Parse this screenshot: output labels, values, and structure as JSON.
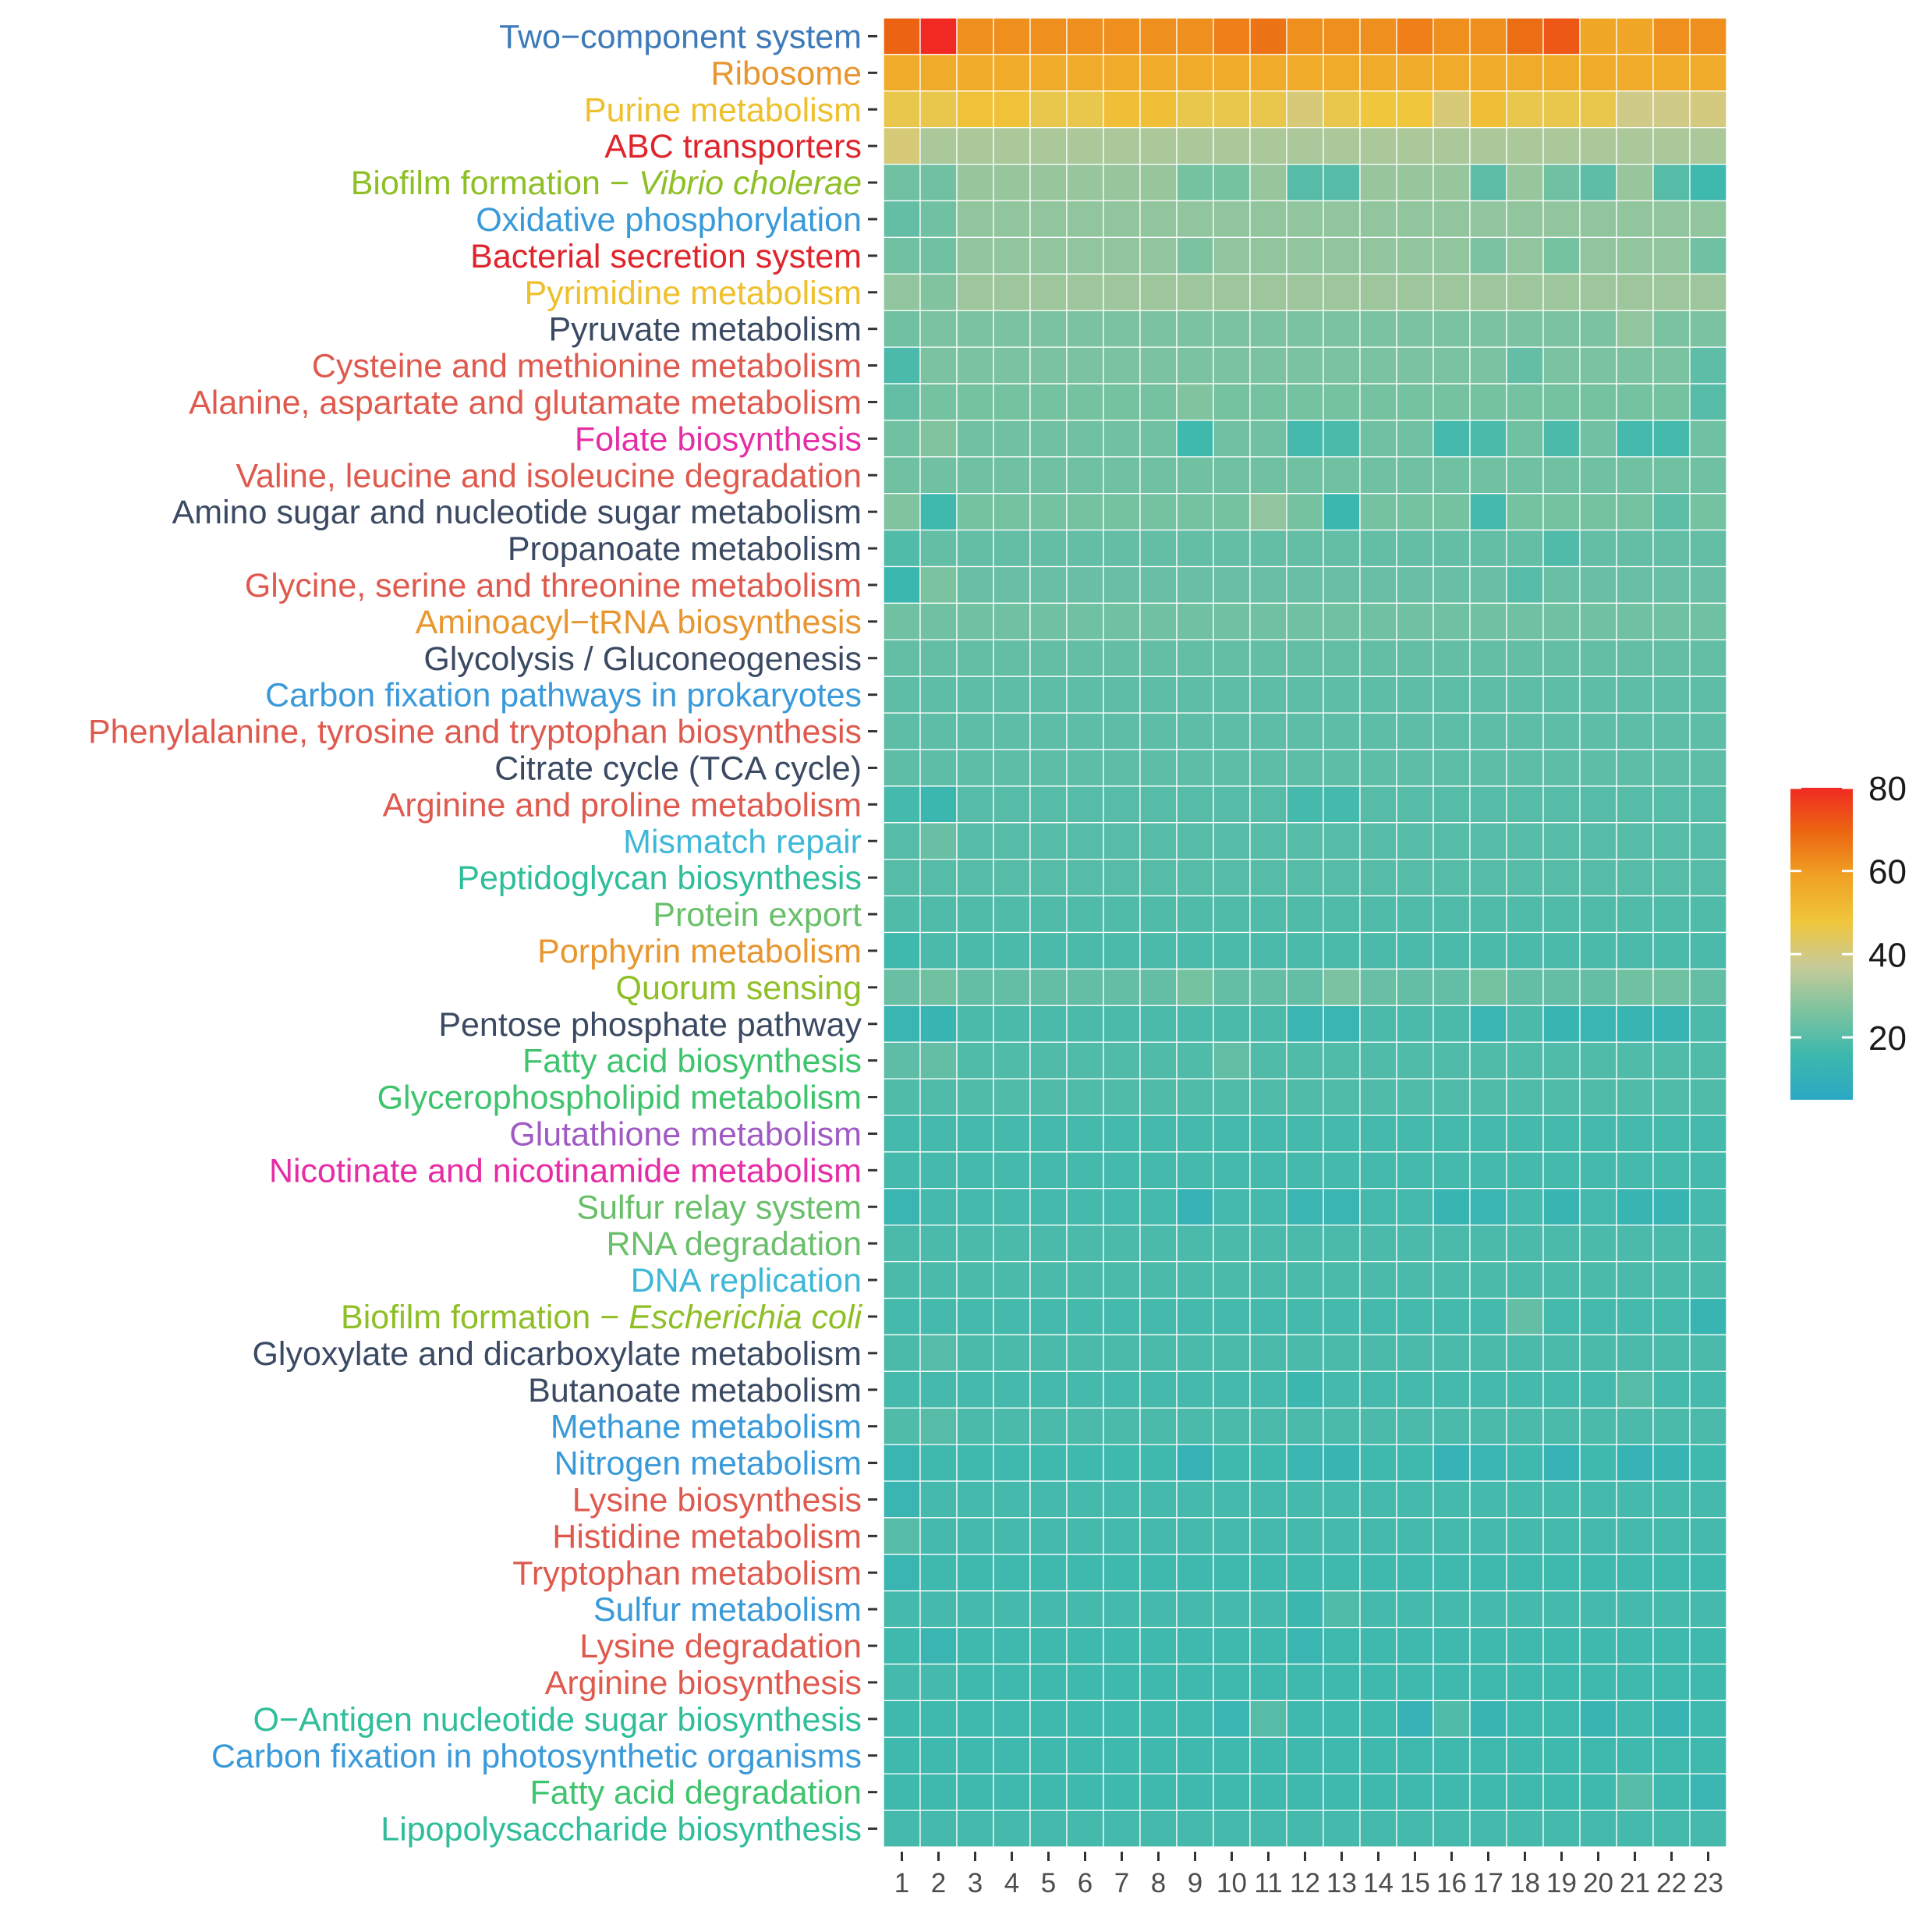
{
  "chart_data": {
    "type": "heatmap",
    "title": "",
    "xlabel": "",
    "ylabel": "",
    "columns": [
      "1",
      "2",
      "3",
      "4",
      "5",
      "6",
      "7",
      "8",
      "9",
      "10",
      "11",
      "12",
      "13",
      "14",
      "15",
      "16",
      "17",
      "18",
      "19",
      "20",
      "21",
      "22",
      "23"
    ],
    "rows": [
      {
        "label": "Two−component system",
        "color": "#3d7ab8",
        "base": 62,
        "devs": {
          "1": 70,
          "2": 80,
          "10": 65,
          "11": 67,
          "15": 65,
          "18": 68,
          "19": 72,
          "20": 57,
          "21": 57
        }
      },
      {
        "label": "Ribosome",
        "color": "#e8962f",
        "base": 56,
        "devs": {}
      },
      {
        "label": "Purine metabolism",
        "color": "#eec02c",
        "base": 46,
        "devs": {
          "3": 49,
          "4": 49,
          "7": 50,
          "8": 50,
          "12": 41,
          "14": 48,
          "15": 48,
          "16": 41,
          "17": 50,
          "21": 39,
          "22": 39,
          "23": 40
        }
      },
      {
        "label": "ABC transporters",
        "color": "#e0242c",
        "base": 33,
        "devs": {
          "1": 41
        }
      },
      {
        "label": "Biofilm formation − ",
        "italic": "Vibrio cholerae",
        "color": "#8fbf26",
        "base": 30,
        "devs": {
          "1": 24,
          "2": 24,
          "9": 25,
          "10": 25,
          "12": 20,
          "13": 20,
          "17": 21,
          "19": 24,
          "20": 21,
          "22": 20,
          "23": 16
        }
      },
      {
        "label": "Oxidative phosphorylation",
        "color": "#3a9ad9",
        "base": 29,
        "devs": {
          "1": 22,
          "2": 24
        }
      },
      {
        "label": "Bacterial secretion system",
        "color": "#e0242c",
        "base": 29,
        "devs": {
          "1": 24,
          "2": 24,
          "9": 26,
          "17": 26,
          "19": 25,
          "23": 24
        }
      },
      {
        "label": "Pyrimidine metabolism",
        "color": "#eec02c",
        "base": 31,
        "devs": {
          "1": 29,
          "2": 27
        }
      },
      {
        "label": "Pyruvate metabolism",
        "color": "#3b4a63",
        "base": 26,
        "devs": {
          "1": 24,
          "21": 29
        }
      },
      {
        "label": "Cysteine and methionine metabolism",
        "color": "#df5a4e",
        "base": 26,
        "devs": {
          "1": 18,
          "18": 22,
          "23": 21
        }
      },
      {
        "label": "Alanine, aspartate and glutamate metabolism",
        "color": "#df5a4e",
        "base": 25,
        "devs": {
          "1": 22,
          "9": 27,
          "23": 20
        }
      },
      {
        "label": "Folate biosynthesis",
        "color": "#e62da6",
        "base": 24,
        "devs": {
          "2": 27,
          "9": 16,
          "12": 17,
          "13": 18,
          "16": 17,
          "17": 18,
          "19": 18,
          "21": 17,
          "22": 17
        }
      },
      {
        "label": "Valine, leucine and isoleucine degradation",
        "color": "#df5a4e",
        "base": 24,
        "devs": {}
      },
      {
        "label": "Amino sugar and nucleotide sugar metabolism",
        "color": "#3b4a63",
        "base": 25,
        "devs": {
          "1": 27,
          "2": 16,
          "11": 29,
          "13": 15,
          "17": 17,
          "22": 21
        }
      },
      {
        "label": "Propanoate metabolism",
        "color": "#3b4a63",
        "base": 22,
        "devs": {
          "1": 19,
          "19": 19
        }
      },
      {
        "label": "Glycine, serine and threonine metabolism",
        "color": "#df5a4e",
        "base": 23,
        "devs": {
          "1": 15,
          "2": 26,
          "18": 20
        }
      },
      {
        "label": "Aminoacyl−tRNA biosynthesis",
        "color": "#e8962f",
        "base": 24,
        "devs": {}
      },
      {
        "label": "Glycolysis / Gluconeogenesis",
        "color": "#3b4a63",
        "base": 22,
        "devs": {}
      },
      {
        "label": "Carbon fixation pathways in prokaryotes",
        "color": "#3a9ad9",
        "base": 21,
        "devs": {}
      },
      {
        "label": "Phenylalanine, tyrosine and tryptophan biosynthesis",
        "color": "#df5a4e",
        "base": 21,
        "devs": {}
      },
      {
        "label": "Citrate cycle (TCA cycle)",
        "color": "#3b4a63",
        "base": 21,
        "devs": {}
      },
      {
        "label": "Arginine and proline metabolism",
        "color": "#df5a4e",
        "base": 20,
        "devs": {
          "1": 17,
          "2": 15,
          "12": 17,
          "13": 17
        }
      },
      {
        "label": "Mismatch repair",
        "color": "#3fb8d8",
        "base": 20,
        "devs": {
          "2": 23
        }
      },
      {
        "label": "Peptidoglycan biosynthesis",
        "color": "#2fbd9a",
        "base": 20,
        "devs": {}
      },
      {
        "label": "Protein export",
        "color": "#6abf6b",
        "base": 19,
        "devs": {}
      },
      {
        "label": "Porphyrin metabolism",
        "color": "#e8962f",
        "base": 18,
        "devs": {
          "1": 16
        }
      },
      {
        "label": "Quorum sensing",
        "color": "#8fbf26",
        "base": 22,
        "devs": {
          "1": 23,
          "2": 24,
          "9": 25,
          "13": 26,
          "14": 23,
          "17": 25,
          "21": 24,
          "22": 24
        }
      },
      {
        "label": "Pentose phosphate pathway",
        "color": "#3b4a63",
        "base": 18,
        "devs": {
          "1": 14,
          "2": 13,
          "12": 14,
          "13": 14,
          "17": 14,
          "19": 13,
          "20": 14,
          "21": 13,
          "22": 13
        }
      },
      {
        "label": "Fatty acid biosynthesis",
        "color": "#3ec46d",
        "base": 19,
        "devs": {
          "1": 21,
          "2": 22,
          "10": 22
        }
      },
      {
        "label": "Glycerophospholipid metabolism",
        "color": "#3ec46d",
        "base": 19,
        "devs": {}
      },
      {
        "label": "Glutathione metabolism",
        "color": "#a05ac4",
        "base": 17,
        "devs": {}
      },
      {
        "label": "Nicotinate and nicotinamide metabolism",
        "color": "#e62da6",
        "base": 17,
        "devs": {}
      },
      {
        "label": "Sulfur relay system",
        "color": "#6abf6b",
        "base": 17,
        "devs": {
          "1": 14,
          "9": 12,
          "12": 14,
          "13": 14,
          "16": 13,
          "17": 14,
          "19": 13,
          "21": 13,
          "22": 13
        }
      },
      {
        "label": "RNA degradation",
        "color": "#6abf6b",
        "base": 18,
        "devs": {}
      },
      {
        "label": "DNA replication",
        "color": "#3fb8d8",
        "base": 18,
        "devs": {}
      },
      {
        "label": "Biofilm formation − ",
        "italic": "Escherichia coli",
        "color": "#8fbf26",
        "base": 17,
        "devs": {
          "18": 22,
          "23": 13
        }
      },
      {
        "label": "Glyoxylate and dicarboxylate metabolism",
        "color": "#3b4a63",
        "base": 18,
        "devs": {
          "2": 20
        }
      },
      {
        "label": "Butanoate metabolism",
        "color": "#3b4a63",
        "base": 17,
        "devs": {
          "12": 15,
          "21": 20
        }
      },
      {
        "label": "Methane metabolism",
        "color": "#3a9ad9",
        "base": 18,
        "devs": {
          "1": 19,
          "2": 20
        }
      },
      {
        "label": "Nitrogen metabolism",
        "color": "#3a9ad9",
        "base": 16,
        "devs": {
          "1": 14,
          "9": 12,
          "12": 14,
          "13": 13,
          "16": 12,
          "17": 14,
          "19": 12,
          "21": 12,
          "22": 13
        }
      },
      {
        "label": "Lysine biosynthesis",
        "color": "#df5a4e",
        "base": 17,
        "devs": {
          "1": 14
        }
      },
      {
        "label": "Histidine metabolism",
        "color": "#df5a4e",
        "base": 17,
        "devs": {
          "1": 20
        }
      },
      {
        "label": "Tryptophan metabolism",
        "color": "#df5a4e",
        "base": 16,
        "devs": {
          "1": 14
        }
      },
      {
        "label": "Sulfur metabolism",
        "color": "#3a9ad9",
        "base": 17,
        "devs": {
          "12": 15,
          "13": 19
        }
      },
      {
        "label": "Lysine degradation",
        "color": "#df5a4e",
        "base": 16,
        "devs": {
          "2": 14,
          "12": 14
        }
      },
      {
        "label": "Arginine biosynthesis",
        "color": "#df5a4e",
        "base": 16,
        "devs": {
          "1": 17,
          "2": 17
        }
      },
      {
        "label": "O−Antigen nucleotide sugar biosynthesis",
        "color": "#2fbd9a",
        "base": 16,
        "devs": {
          "10": 14,
          "11": 20,
          "15": 12,
          "16": 19,
          "17": 13,
          "20": 13,
          "22": 13
        }
      },
      {
        "label": "Carbon fixation in photosynthetic organisms",
        "color": "#3a9ad9",
        "base": 16,
        "devs": {}
      },
      {
        "label": "Fatty acid degradation",
        "color": "#3ec46d",
        "base": 16,
        "devs": {
          "21": 20,
          "23": 14
        }
      },
      {
        "label": "Lipopolysaccharide biosynthesis",
        "color": "#2fbd9a",
        "base": 17,
        "devs": {}
      }
    ],
    "legend": {
      "ticks": [
        20,
        40,
        60,
        80
      ],
      "range": [
        5,
        80
      ],
      "palette": [
        "#2ba8c4",
        "#3db8ad",
        "#7ec39f",
        "#c8cb98",
        "#f0c63c",
        "#f0a224",
        "#ec6712",
        "#f02a22"
      ],
      "position": "right"
    }
  }
}
